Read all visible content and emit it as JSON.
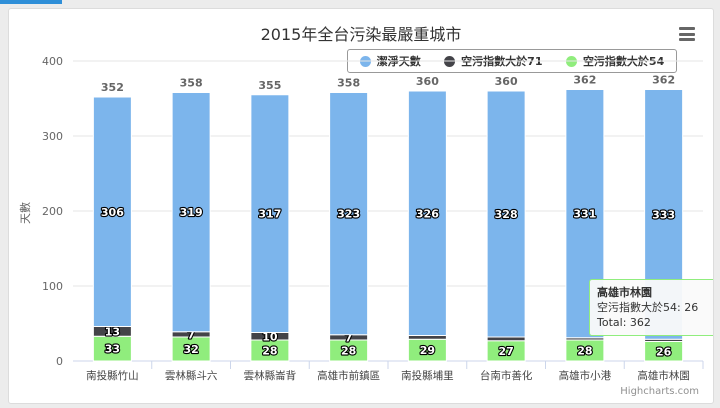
{
  "chart_data": {
    "type": "bar",
    "stacked": true,
    "title": "2015年全台污染最嚴重城市",
    "ylabel": "天數",
    "xlabel": "",
    "ylim": [
      0,
      400
    ],
    "yticks": [
      0,
      100,
      200,
      300,
      400
    ],
    "grid": true,
    "legend_position": "top-right",
    "categories": [
      "南投縣竹山",
      "雲林縣斗六",
      "雲林縣崙背",
      "高雄市前鎮區",
      "南投縣埔里",
      "台南市善化",
      "高雄市小港",
      "高雄市林園"
    ],
    "series": [
      {
        "name": "潔淨天數",
        "color": "#7cb5ec",
        "values": [
          306,
          319,
          317,
          323,
          326,
          328,
          331,
          333
        ]
      },
      {
        "name": "空污指數大於71",
        "color": "#434348",
        "values": [
          13,
          7,
          10,
          7,
          5,
          5,
          3,
          3
        ]
      },
      {
        "name": "空污指數大於54",
        "color": "#90ed7d",
        "values": [
          33,
          32,
          28,
          28,
          29,
          27,
          28,
          26
        ]
      }
    ],
    "totals": [
      352,
      358,
      355,
      358,
      360,
      360,
      362,
      362
    ],
    "shown_labels": {
      "潔淨天數": [
        true,
        true,
        true,
        true,
        true,
        true,
        true,
        true
      ],
      "空污指數大於71": [
        true,
        true,
        true,
        true,
        false,
        false,
        false,
        false
      ],
      "空污指數大於54": [
        true,
        true,
        true,
        true,
        true,
        true,
        true,
        true
      ]
    }
  },
  "tooltip": {
    "title": "高雄市林園",
    "line": "空污指數大於54: 26",
    "total": "Total: 362"
  },
  "credits": "Highcharts.com",
  "colors": {
    "accent": "#2f8fd8",
    "grid": "#e6e6e6"
  }
}
